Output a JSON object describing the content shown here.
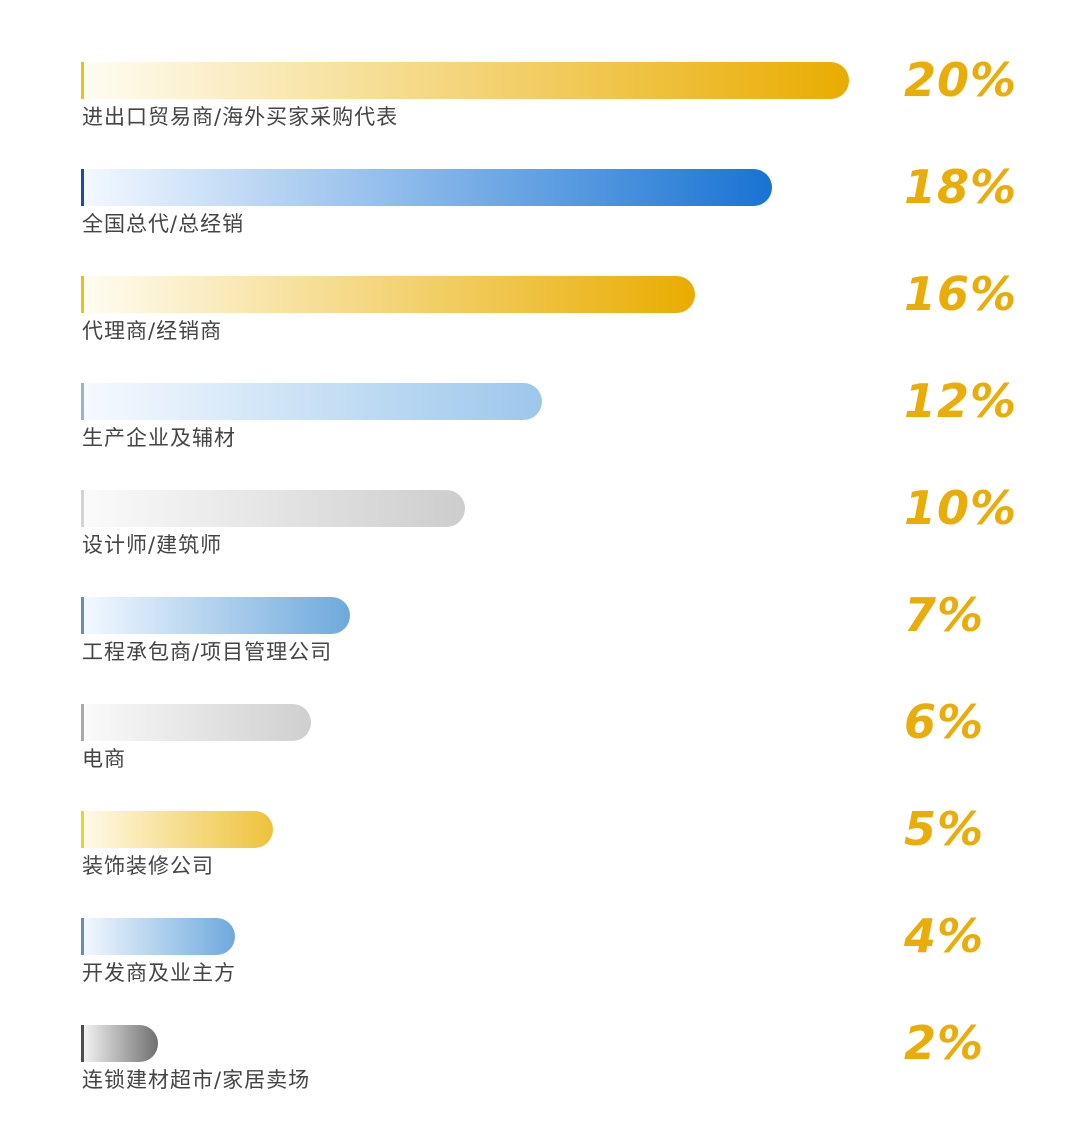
{
  "chart_data": {
    "type": "bar",
    "orientation": "horizontal",
    "categories": [
      "进出口贸易商/海外买家采购代表",
      "全国总代/总经销",
      "代理商/经销商",
      "生产企业及辅材",
      "设计师/建筑师",
      "工程承包商/项目管理公司",
      "电商",
      "装饰装修公司",
      "开发商及业主方",
      "连锁建材超市/家居卖场"
    ],
    "values": [
      20,
      18,
      16,
      12,
      10,
      7,
      6,
      5,
      4,
      2
    ],
    "value_labels": [
      "20%",
      "18%",
      "16%",
      "12%",
      "10%",
      "7%",
      "6%",
      "5%",
      "4%",
      "2%"
    ],
    "bar_colors": [
      {
        "start": "#fffdf3",
        "end": "#e9ac00",
        "edge": "#e9c11c"
      },
      {
        "start": "#f4f9ff",
        "end": "#1873d3",
        "edge": "#1c4f9b"
      },
      {
        "start": "#fffdf3",
        "end": "#e9ac00",
        "edge": "#e9c11c"
      },
      {
        "start": "#f6faff",
        "end": "#9cc7ec",
        "edge": "#98b2cf"
      },
      {
        "start": "#fbfbfb",
        "end": "#cdcdcd",
        "edge": "#d4d4d4"
      },
      {
        "start": "#f4f9ff",
        "end": "#6ea9dc",
        "edge": "#6a8cb4"
      },
      {
        "start": "#fbfbfb",
        "end": "#cfcfcf",
        "edge": "#a9a9a9"
      },
      {
        "start": "#fffbea",
        "end": "#eec23a",
        "edge": "#efd230"
      },
      {
        "start": "#f4f9ff",
        "end": "#6ea9dc",
        "edge": "#6a8cb4"
      },
      {
        "start": "#f7f7f7",
        "end": "#6f6f6f",
        "edge": "#4e4e4e"
      }
    ],
    "pct_color": "#e9ad09",
    "label_color": "#444444",
    "title": "",
    "xlabel": "",
    "ylabel": "",
    "grid": false,
    "legend": "none"
  }
}
